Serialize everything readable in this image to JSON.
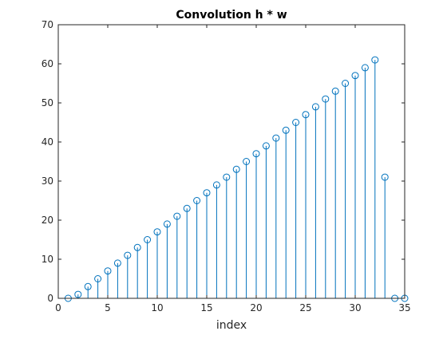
{
  "chart_data": {
    "type": "stem",
    "title": "Convolution h * w",
    "xlabel": "index",
    "ylabel": "",
    "xlim": [
      0,
      35
    ],
    "ylim": [
      0,
      70
    ],
    "xticks": [
      0,
      5,
      10,
      15,
      20,
      25,
      30,
      35
    ],
    "yticks": [
      0,
      10,
      20,
      30,
      40,
      50,
      60,
      70
    ],
    "grid": false,
    "color": "#0072bd",
    "marker": "circle",
    "x": [
      1,
      2,
      3,
      4,
      5,
      6,
      7,
      8,
      9,
      10,
      11,
      12,
      13,
      14,
      15,
      16,
      17,
      18,
      19,
      20,
      21,
      22,
      23,
      24,
      25,
      26,
      27,
      28,
      29,
      30,
      31,
      32,
      33,
      34,
      35
    ],
    "values": [
      0,
      1,
      3,
      5,
      7,
      9,
      11,
      13,
      15,
      17,
      19,
      21,
      23,
      25,
      27,
      29,
      31,
      33,
      35,
      37,
      39,
      41,
      43,
      45,
      47,
      49,
      51,
      53,
      55,
      57,
      59,
      61,
      31,
      0,
      0
    ]
  }
}
